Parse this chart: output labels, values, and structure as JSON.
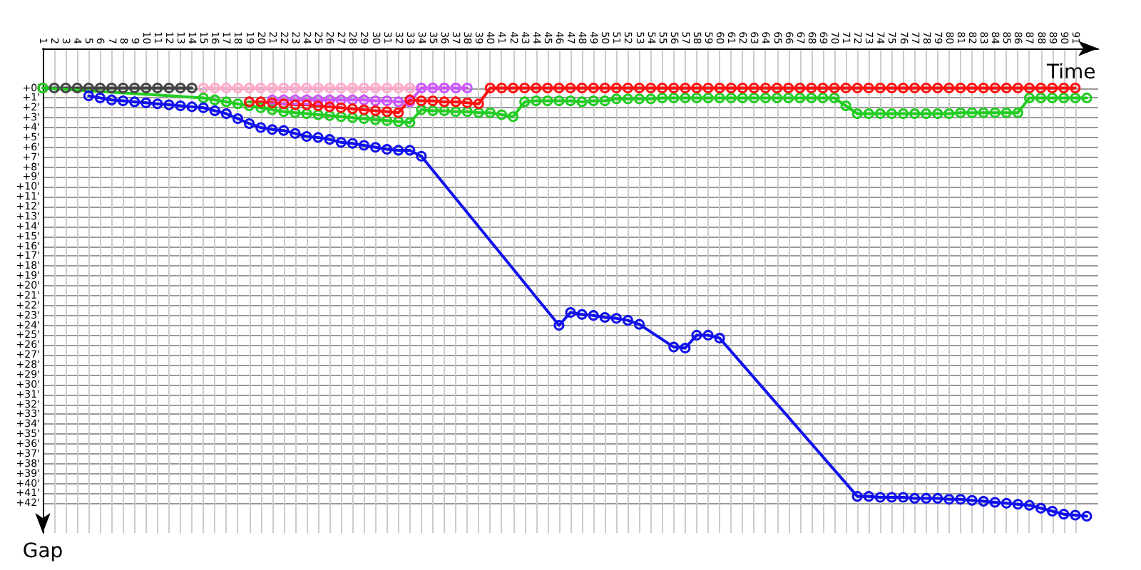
{
  "chart_data": {
    "type": "line",
    "xlabel": "Time",
    "ylabel": "Gap",
    "xlim": [
      1,
      93
    ],
    "ylim": [
      45,
      -4
    ],
    "xticks": [
      1,
      2,
      3,
      4,
      5,
      6,
      7,
      8,
      9,
      10,
      11,
      12,
      13,
      14,
      15,
      16,
      17,
      18,
      19,
      20,
      21,
      22,
      23,
      24,
      25,
      26,
      27,
      28,
      29,
      30,
      31,
      32,
      33,
      34,
      35,
      36,
      37,
      38,
      39,
      40,
      41,
      42,
      43,
      44,
      45,
      46,
      47,
      48,
      49,
      50,
      51,
      52,
      53,
      54,
      55,
      56,
      57,
      58,
      59,
      60,
      61,
      62,
      63,
      64,
      65,
      66,
      67,
      68,
      69,
      70,
      71,
      72,
      73,
      74,
      75,
      76,
      77,
      78,
      79,
      80,
      81,
      82,
      83,
      84,
      85,
      86,
      87,
      88,
      89,
      90,
      91
    ],
    "yticks": [
      {
        "value": 0,
        "label": "+0'"
      },
      {
        "value": 1,
        "label": "+1'"
      },
      {
        "value": 2,
        "label": "+2'"
      },
      {
        "value": 3,
        "label": "+3'"
      },
      {
        "value": 4,
        "label": "+4'"
      },
      {
        "value": 5,
        "label": "+5'"
      },
      {
        "value": 6,
        "label": "+6'"
      },
      {
        "value": 7,
        "label": "+7'"
      },
      {
        "value": 8,
        "label": "+8'"
      },
      {
        "value": 9,
        "label": "+9'"
      },
      {
        "value": 10,
        "label": "+10'"
      },
      {
        "value": 11,
        "label": "+11'"
      },
      {
        "value": 12,
        "label": "+12'"
      },
      {
        "value": 13,
        "label": "+13'"
      },
      {
        "value": 14,
        "label": "+14'"
      },
      {
        "value": 15,
        "label": "+15'"
      },
      {
        "value": 16,
        "label": "+16'"
      },
      {
        "value": 17,
        "label": "+17'"
      },
      {
        "value": 18,
        "label": "+18'"
      },
      {
        "value": 19,
        "label": "+19'"
      },
      {
        "value": 20,
        "label": "+20'"
      },
      {
        "value": 21,
        "label": "+21'"
      },
      {
        "value": 22,
        "label": "+22'"
      },
      {
        "value": 23,
        "label": "+23'"
      },
      {
        "value": 24,
        "label": "+24'"
      },
      {
        "value": 25,
        "label": "+25'"
      },
      {
        "value": 26,
        "label": "+26'"
      },
      {
        "value": 27,
        "label": "+27'"
      },
      {
        "value": 28,
        "label": "+28'"
      },
      {
        "value": 29,
        "label": "+29'"
      },
      {
        "value": 30,
        "label": "+30'"
      },
      {
        "value": 31,
        "label": "+31'"
      },
      {
        "value": 32,
        "label": "+32'"
      },
      {
        "value": 33,
        "label": "+33'"
      },
      {
        "value": 34,
        "label": "+34'"
      },
      {
        "value": 35,
        "label": "+35'"
      },
      {
        "value": 36,
        "label": "+36'"
      },
      {
        "value": 37,
        "label": "+37'"
      },
      {
        "value": 38,
        "label": "+38'"
      },
      {
        "value": 39,
        "label": "+39'"
      },
      {
        "value": 40,
        "label": "+40'"
      },
      {
        "value": 41,
        "label": "+41'"
      },
      {
        "value": 42,
        "label": "+42'"
      }
    ],
    "grid": true,
    "marker": "circle",
    "line_style": "solid",
    "series": [
      {
        "color": "#444444",
        "x": [
          1,
          2,
          3,
          4,
          5,
          6,
          7,
          8,
          9,
          10,
          11,
          12,
          13,
          14
        ],
        "values": [
          0,
          0,
          0,
          0,
          0,
          0,
          0,
          0,
          0,
          0,
          0,
          0,
          0,
          0
        ]
      },
      {
        "color": "#ffaacc",
        "x": [
          15,
          16,
          17,
          18,
          19,
          20,
          21,
          22,
          23,
          24,
          25,
          26,
          27,
          28,
          29,
          30,
          31,
          32,
          33,
          34,
          35,
          36,
          37
        ],
        "values": [
          0,
          0,
          0,
          0,
          0,
          0,
          0,
          0,
          0,
          0,
          0,
          0,
          0,
          0,
          0,
          0,
          0,
          0,
          0,
          0,
          0,
          0,
          0
        ]
      },
      {
        "color": "#cc55ff",
        "x": [
          21,
          22,
          23,
          24,
          25,
          26,
          27,
          28,
          29,
          30,
          31,
          32,
          33,
          34,
          35,
          36,
          37,
          38
        ],
        "values": [
          1.2,
          1.2,
          1.2,
          1.2,
          1.2,
          1.2,
          1.2,
          1.2,
          1.2,
          1.3,
          1.3,
          1.4,
          1.4,
          0,
          0,
          0,
          0,
          0
        ]
      },
      {
        "color": "#22cc22",
        "x": [
          1,
          15,
          16,
          17,
          18,
          19,
          20,
          21,
          22,
          23,
          24,
          25,
          26,
          27,
          28,
          29,
          30,
          31,
          32,
          33,
          34,
          35,
          36,
          37,
          38,
          39,
          40,
          41,
          42,
          43,
          44,
          45,
          46,
          47,
          48,
          49,
          50,
          51,
          52,
          53,
          54,
          55,
          56,
          57,
          58,
          59,
          60,
          61,
          62,
          63,
          64,
          65,
          66,
          67,
          68,
          69,
          70,
          71,
          72,
          73,
          74,
          75,
          76,
          77,
          78,
          79,
          80,
          81,
          82,
          83,
          84,
          85,
          86,
          87,
          88,
          89,
          90,
          91,
          92
        ],
        "values": [
          0,
          1.0,
          1.2,
          1.4,
          1.6,
          1.8,
          2.0,
          2.2,
          2.4,
          2.5,
          2.6,
          2.7,
          2.8,
          2.9,
          3.0,
          3.1,
          3.2,
          3.3,
          3.4,
          3.5,
          2.2,
          2.3,
          2.3,
          2.4,
          2.4,
          2.5,
          2.5,
          2.7,
          2.9,
          1.4,
          1.3,
          1.3,
          1.3,
          1.3,
          1.4,
          1.3,
          1.3,
          1.1,
          1.1,
          1.1,
          1.1,
          1.0,
          1.0,
          1.0,
          1.0,
          1.0,
          1.0,
          1.0,
          1.0,
          1.0,
          1.0,
          1.0,
          1.0,
          1.0,
          1.0,
          1.0,
          1.0,
          1.8,
          2.6,
          2.6,
          2.6,
          2.6,
          2.6,
          2.6,
          2.6,
          2.6,
          2.6,
          2.5,
          2.5,
          2.5,
          2.5,
          2.5,
          2.5,
          1.0,
          1.0,
          1.0,
          1.0,
          1.0,
          1.0
        ]
      },
      {
        "color": "#ff1111",
        "x": [
          19,
          20,
          21,
          22,
          23,
          24,
          25,
          26,
          27,
          28,
          29,
          30,
          31,
          32,
          33,
          34,
          35,
          36,
          37,
          38,
          39,
          40,
          41,
          42,
          43,
          44,
          45,
          46,
          47,
          48,
          49,
          50,
          51,
          52,
          53,
          54,
          55,
          56,
          57,
          58,
          59,
          60,
          61,
          62,
          63,
          64,
          65,
          66,
          67,
          68,
          69,
          70,
          71,
          72,
          73,
          74,
          75,
          76,
          77,
          78,
          79,
          80,
          81,
          82,
          83,
          84,
          85,
          86,
          87,
          88,
          89,
          90,
          91
        ],
        "values": [
          1.4,
          1.4,
          1.5,
          1.6,
          1.7,
          1.7,
          1.8,
          1.9,
          2.0,
          2.1,
          2.2,
          2.3,
          2.4,
          2.5,
          1.2,
          1.3,
          1.3,
          1.4,
          1.4,
          1.5,
          1.6,
          0,
          0,
          0,
          0,
          0,
          0,
          0,
          0,
          0,
          0,
          0,
          0,
          0,
          0,
          0,
          0,
          0,
          0,
          0,
          0,
          0,
          0,
          0,
          0,
          0,
          0,
          0,
          0,
          0,
          0,
          0,
          0,
          0,
          0,
          0,
          0,
          0,
          0,
          0,
          0,
          0,
          0,
          0,
          0,
          0,
          0,
          0,
          0,
          0,
          0,
          0,
          0
        ]
      },
      {
        "color": "#1111ee",
        "x": [
          5,
          6,
          7,
          8,
          9,
          10,
          11,
          12,
          13,
          14,
          15,
          16,
          17,
          18,
          19,
          20,
          21,
          22,
          23,
          24,
          25,
          26,
          27,
          28,
          29,
          30,
          31,
          32,
          33,
          34,
          46,
          47,
          48,
          49,
          50,
          51,
          52,
          53,
          56,
          57,
          58,
          59,
          60,
          72,
          73,
          74,
          75,
          76,
          77,
          78,
          79,
          80,
          81,
          82,
          83,
          84,
          85,
          86,
          87,
          88,
          89,
          90,
          91,
          92
        ],
        "values": [
          0.8,
          1.0,
          1.2,
          1.3,
          1.4,
          1.5,
          1.6,
          1.7,
          1.8,
          1.9,
          2.0,
          2.3,
          2.6,
          3.1,
          3.6,
          4.0,
          4.2,
          4.3,
          4.6,
          4.9,
          5.0,
          5.2,
          5.5,
          5.6,
          5.8,
          6.0,
          6.2,
          6.3,
          6.3,
          6.9,
          24.0,
          22.7,
          22.9,
          23.0,
          23.2,
          23.3,
          23.5,
          23.9,
          26.2,
          26.3,
          25.0,
          25.0,
          25.3,
          41.3,
          41.3,
          41.4,
          41.4,
          41.4,
          41.5,
          41.5,
          41.5,
          41.6,
          41.6,
          41.7,
          41.8,
          41.9,
          42.0,
          42.1,
          42.2,
          42.5,
          42.8,
          43.1,
          43.2,
          43.3
        ]
      }
    ]
  }
}
